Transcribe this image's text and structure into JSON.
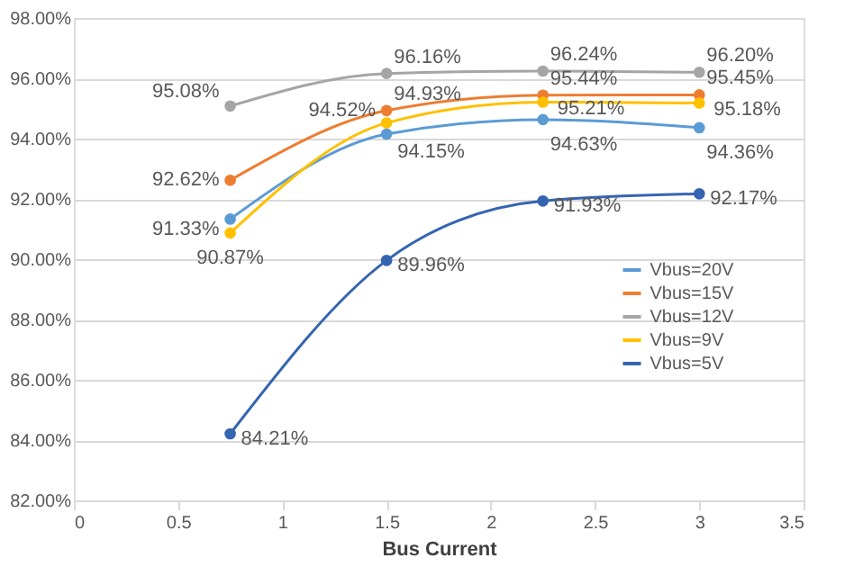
{
  "chart_data": {
    "type": "line",
    "xlabel": "Bus Current",
    "series": [
      {
        "name": "Vbus=20V",
        "color": "#5b9bd5",
        "x": [
          0.75,
          1.5,
          2.25,
          3
        ],
        "values": [
          91.33,
          94.15,
          94.63,
          94.36
        ],
        "value_labels": [
          "91.33%",
          "94.15%",
          "94.63%",
          "94.36%"
        ]
      },
      {
        "name": "Vbus=15V",
        "color": "#ed7d31",
        "x": [
          0.75,
          1.5,
          2.25,
          3
        ],
        "values": [
          92.62,
          94.93,
          95.44,
          95.45
        ],
        "value_labels": [
          "92.62%",
          "94.93%",
          "95.44%",
          "95.45%"
        ]
      },
      {
        "name": "Vbus=12V",
        "color": "#a5a5a5",
        "x": [
          0.75,
          1.5,
          2.25,
          3
        ],
        "values": [
          95.08,
          96.16,
          96.24,
          96.2
        ],
        "value_labels": [
          "95.08%",
          "96.16%",
          "96.24%",
          "96.20%"
        ]
      },
      {
        "name": "Vbus=9V",
        "color": "#ffc000",
        "x": [
          0.75,
          1.5,
          2.25,
          3
        ],
        "values": [
          90.87,
          94.52,
          95.21,
          95.18
        ],
        "value_labels": [
          "90.87%",
          "94.52%",
          "95.21%",
          "95.18%"
        ]
      },
      {
        "name": "Vbus=5V",
        "color": "#3565b0",
        "x": [
          0.75,
          1.5,
          2.25,
          3
        ],
        "values": [
          84.21,
          89.96,
          91.93,
          92.17
        ],
        "value_labels": [
          "84.21%",
          "89.96%",
          "91.93%",
          "92.17%"
        ]
      }
    ],
    "xlim": [
      0,
      3.5
    ],
    "xticks": [
      0,
      0.5,
      1,
      1.5,
      2,
      2.5,
      3,
      3.5
    ],
    "ylim": [
      82,
      98
    ],
    "yticks": [
      {
        "value": 82,
        "label": "82.00%"
      },
      {
        "value": 84,
        "label": "84.00%"
      },
      {
        "value": 86,
        "label": "86.00%"
      },
      {
        "value": 88,
        "label": "88.00%"
      },
      {
        "value": 90,
        "label": "90.00%"
      },
      {
        "value": 92,
        "label": "92.00%"
      },
      {
        "value": 94,
        "label": "94.00%"
      },
      {
        "value": 96,
        "label": "96.00%"
      },
      {
        "value": 98,
        "label": "98.00%"
      }
    ],
    "grid": "y",
    "legend": "right",
    "marker": "circle",
    "line_style": "solid"
  }
}
